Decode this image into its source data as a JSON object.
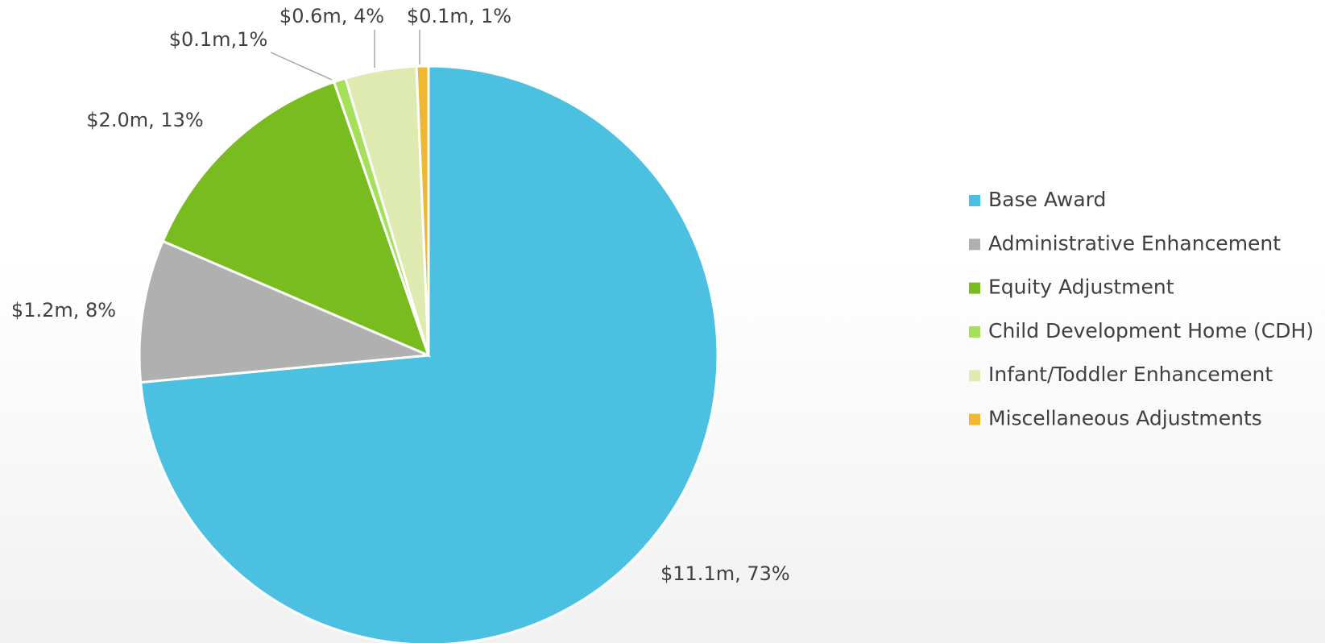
{
  "chart_data": {
    "type": "pie",
    "categories": [
      "Base Award",
      "Administrative Enhancement",
      "Equity Adjustment",
      "Child Development Home (CDH)",
      "Infant/Toddler Enhancement",
      "Miscellaneous Adjustments"
    ],
    "values": [
      11.1,
      1.2,
      2.0,
      0.1,
      0.6,
      0.1
    ],
    "value_labels": [
      "$11.1m, 73%",
      "$1.2m, 8%",
      "$2.0m, 13%",
      "$0.1m,1%",
      "$0.6m, 4%",
      "$0.1m, 1%"
    ],
    "colors": [
      "#4bc0e0",
      "#b0b0b0",
      "#78bc20",
      "#a6e05a",
      "#deeab0",
      "#f0b830"
    ],
    "legend": "right"
  }
}
